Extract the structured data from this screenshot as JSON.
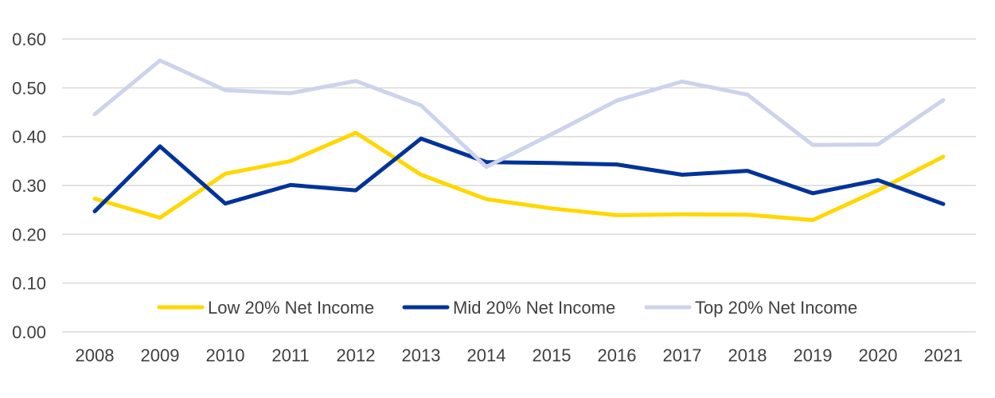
{
  "chart_data": {
    "type": "line",
    "categories": [
      "2008",
      "2009",
      "2010",
      "2011",
      "2012",
      "2013",
      "2014",
      "2015",
      "2016",
      "2017",
      "2018",
      "2019",
      "2020",
      "2021"
    ],
    "series": [
      {
        "name": "Low 20% Net Income",
        "color": "#FFD700",
        "values": [
          0.273,
          0.234,
          0.324,
          0.35,
          0.408,
          0.322,
          0.272,
          0.253,
          0.239,
          0.241,
          0.24,
          0.229,
          0.29,
          0.359
        ]
      },
      {
        "name": "Mid 20% Net Income",
        "color": "#003399",
        "values": [
          0.247,
          0.38,
          0.263,
          0.301,
          0.29,
          0.396,
          0.348,
          0.346,
          0.343,
          0.322,
          0.33,
          0.284,
          0.311,
          0.262
        ]
      },
      {
        "name": "Top 20% Net Income",
        "color": "#CDD3EB",
        "values": [
          0.446,
          0.556,
          0.495,
          0.489,
          0.514,
          0.464,
          0.338,
          0.405,
          0.474,
          0.513,
          0.486,
          0.383,
          0.384,
          0.475
        ]
      }
    ],
    "y_ticks": [
      "0.00",
      "0.10",
      "0.20",
      "0.30",
      "0.40",
      "0.50",
      "0.60"
    ],
    "ylim": [
      0,
      0.6
    ],
    "grid": true,
    "legend_position": "bottom-inside",
    "title": "",
    "xlabel": "",
    "ylabel": ""
  }
}
